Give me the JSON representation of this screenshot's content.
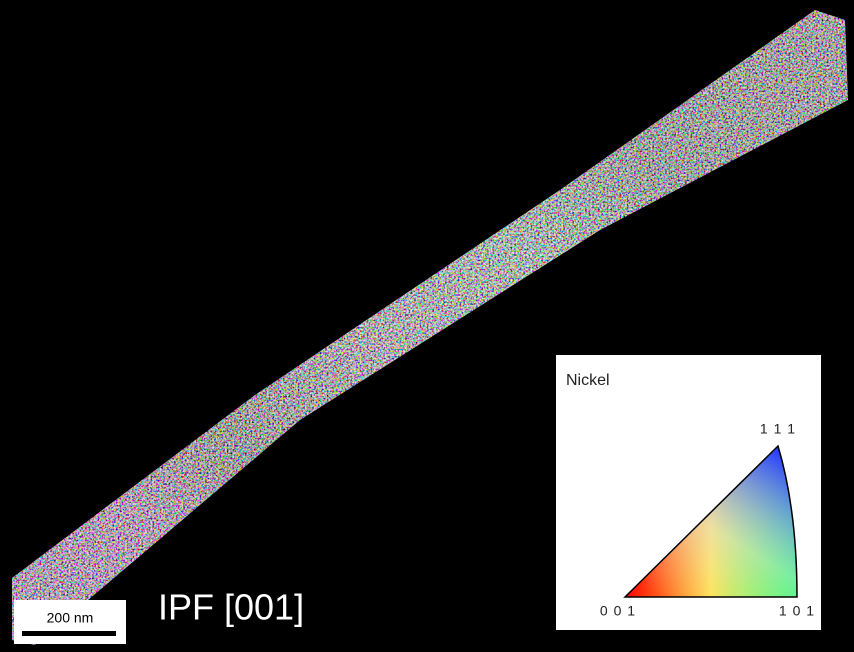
{
  "image": {
    "caption": "IPF [001]",
    "scale_bar": "200 nm"
  },
  "legend": {
    "title": "Nickel",
    "corners": {
      "top": "1 1 1",
      "left": "0 0 1",
      "right": "1 0 1"
    }
  }
}
